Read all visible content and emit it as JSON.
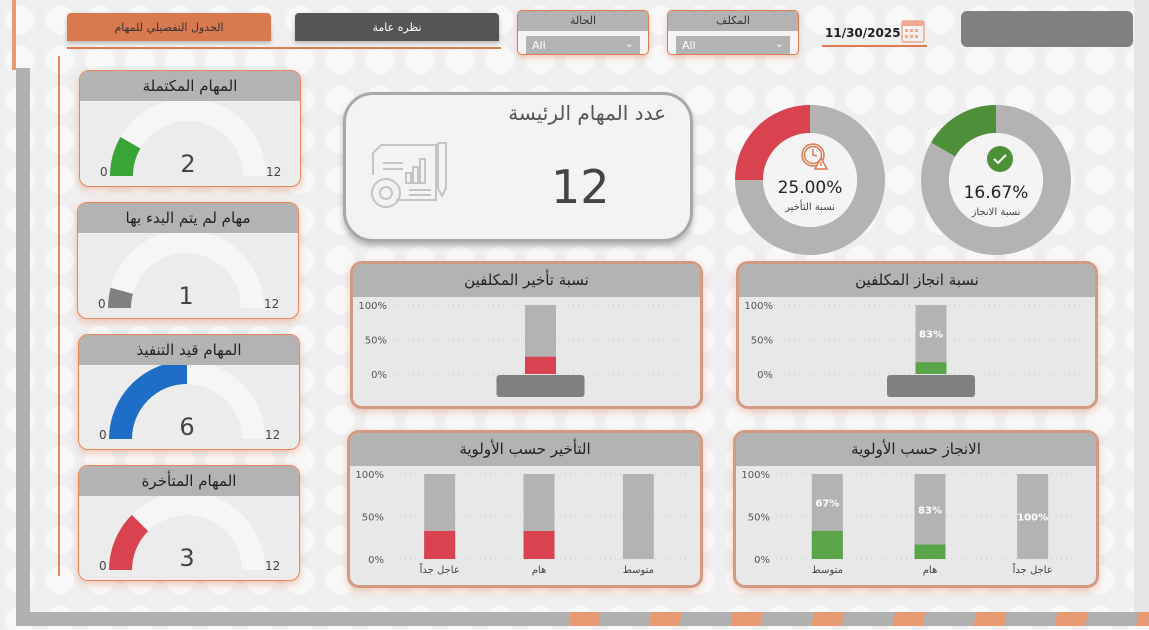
{
  "nav": {
    "detail_tab": "الجدول التفصيلي للمهام",
    "overview_tab": "نظره عامة"
  },
  "filters": [
    {
      "label": "الحالة",
      "value": "All"
    },
    {
      "label": "المكلف",
      "value": "All"
    }
  ],
  "date": "11/30/2025",
  "colors": {
    "accent": "#e07a4f",
    "green": "#3aa537",
    "red": "#d9434f",
    "blue": "#1e6ec8",
    "gray": "#808080",
    "track": "#b3b3b3"
  },
  "gauges": [
    {
      "title": "المهام المكتملة",
      "value": 2,
      "min": 0,
      "max": 12,
      "color": "#3aa537"
    },
    {
      "title": "مهام لم يتم البدء بها",
      "value": 1,
      "min": 0,
      "max": 12,
      "color": "#808080"
    },
    {
      "title": "المهام قيد التنفيذ",
      "value": 6,
      "min": 0,
      "max": 12,
      "color": "#1e6ec8"
    },
    {
      "title": "المهام المتأخرة",
      "value": 3,
      "min": 0,
      "max": 12,
      "color": "#d9434f"
    }
  ],
  "main_kpi": {
    "title": "عدد المهام الرئيسة",
    "value": "12"
  },
  "donuts": [
    {
      "value_label": "25.00%",
      "caption": "نسبة التأخير",
      "fraction": 0.25,
      "color": "#d9434f",
      "icon": "clock-warning-icon"
    },
    {
      "value_label": "16.67%",
      "caption": "نسبة الانجاز",
      "fraction": 0.1667,
      "color": "#4e8f3a",
      "icon": "check-circle-icon"
    }
  ],
  "chart_data": [
    {
      "type": "bar",
      "title": "نسبة تأخير المكلفين",
      "categories": [
        ""
      ],
      "values": [
        25
      ],
      "remainder_labels": [
        ""
      ],
      "color": "#d9434f",
      "yticks": [
        "100%",
        "50%",
        "0%"
      ],
      "ylim": [
        0,
        100
      ],
      "redacted_labels": true
    },
    {
      "type": "bar",
      "title": "نسبة انجاز المكلفين",
      "categories": [
        ""
      ],
      "values": [
        17
      ],
      "remainder_labels": [
        "83%"
      ],
      "color": "#5aa54a",
      "yticks": [
        "100%",
        "50%",
        "0%"
      ],
      "ylim": [
        0,
        100
      ],
      "redacted_labels": true
    },
    {
      "type": "bar",
      "title": "التأخير حسب الأولوية",
      "categories": [
        "عاجل جداً",
        "هام",
        "متوسط"
      ],
      "values": [
        33,
        33,
        0
      ],
      "remainder_labels": [
        "",
        "",
        ""
      ],
      "color": "#d9434f",
      "yticks": [
        "100%",
        "50%",
        "0%"
      ],
      "ylim": [
        0,
        100
      ]
    },
    {
      "type": "bar",
      "title": "الانجاز حسب الأولوية",
      "categories": [
        "متوسط",
        "هام",
        "عاجل جداً"
      ],
      "values": [
        33,
        17,
        0
      ],
      "remainder_labels": [
        "67%",
        "83%",
        "100%"
      ],
      "color": "#5aa54a",
      "yticks": [
        "100%",
        "50%",
        "0%"
      ],
      "ylim": [
        0,
        100
      ]
    }
  ]
}
